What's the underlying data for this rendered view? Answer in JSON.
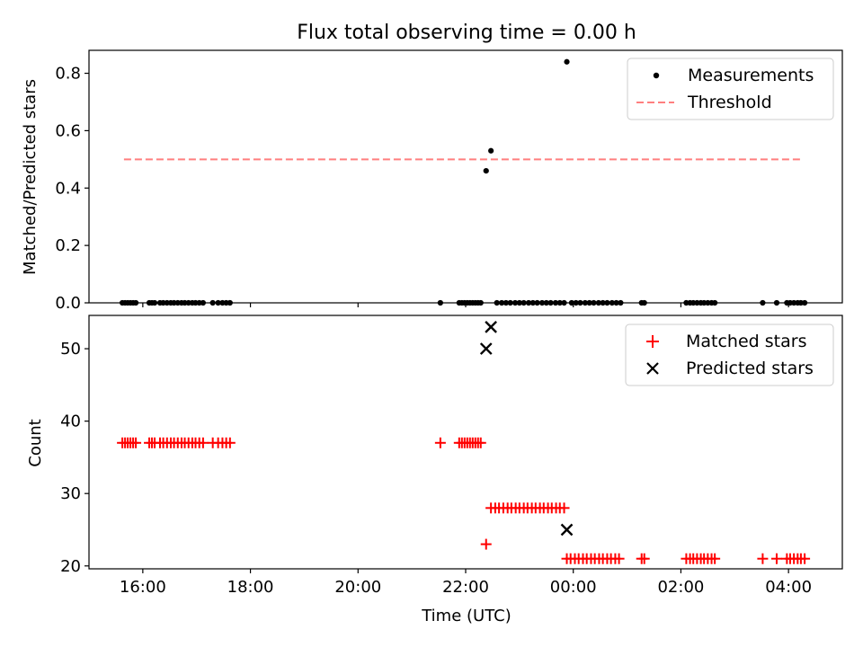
{
  "chart_data": [
    {
      "type": "scatter",
      "title": "Flux total observing time = 0.00 h",
      "ylabel": "Matched/Predicted stars",
      "xlabel": "",
      "xlim": [
        15.0,
        29.0
      ],
      "ylim": [
        0.0,
        0.88
      ],
      "xticks": [
        16,
        18,
        20,
        22,
        24,
        26,
        28
      ],
      "xticklabels": [
        "",
        "",
        "",
        "",
        "",
        "",
        ""
      ],
      "yticks": [
        0.0,
        0.2,
        0.4,
        0.6,
        0.8
      ],
      "yticklabels": [
        "0.0",
        "0.2",
        "0.4",
        "0.6",
        "0.8"
      ],
      "legend_position": "top-right",
      "series": [
        {
          "name": "Measurements",
          "marker": "dot",
          "color": "#000000",
          "points": [
            [
              15.62,
              0.0
            ],
            [
              15.67,
              0.0
            ],
            [
              15.72,
              0.0
            ],
            [
              15.77,
              0.0
            ],
            [
              15.82,
              0.0
            ],
            [
              15.87,
              0.0
            ],
            [
              16.12,
              0.0
            ],
            [
              16.17,
              0.0
            ],
            [
              16.22,
              0.0
            ],
            [
              16.32,
              0.0
            ],
            [
              16.38,
              0.0
            ],
            [
              16.45,
              0.0
            ],
            [
              16.52,
              0.0
            ],
            [
              16.58,
              0.0
            ],
            [
              16.65,
              0.0
            ],
            [
              16.72,
              0.0
            ],
            [
              16.78,
              0.0
            ],
            [
              16.85,
              0.0
            ],
            [
              16.92,
              0.0
            ],
            [
              16.98,
              0.0
            ],
            [
              17.05,
              0.0
            ],
            [
              17.12,
              0.0
            ],
            [
              17.3,
              0.0
            ],
            [
              17.4,
              0.0
            ],
            [
              17.48,
              0.0
            ],
            [
              17.55,
              0.0
            ],
            [
              17.62,
              0.0
            ],
            [
              21.53,
              0.0
            ],
            [
              21.88,
              0.0
            ],
            [
              21.93,
              0.0
            ],
            [
              21.98,
              0.0
            ],
            [
              22.03,
              0.0
            ],
            [
              22.08,
              0.0
            ],
            [
              22.13,
              0.0
            ],
            [
              22.18,
              0.0
            ],
            [
              22.23,
              0.0
            ],
            [
              22.28,
              0.0
            ],
            [
              22.38,
              0.46
            ],
            [
              22.47,
              0.53
            ],
            [
              22.58,
              0.0
            ],
            [
              22.67,
              0.0
            ],
            [
              22.75,
              0.0
            ],
            [
              22.83,
              0.0
            ],
            [
              22.92,
              0.0
            ],
            [
              23.0,
              0.0
            ],
            [
              23.08,
              0.0
            ],
            [
              23.17,
              0.0
            ],
            [
              23.25,
              0.0
            ],
            [
              23.33,
              0.0
            ],
            [
              23.42,
              0.0
            ],
            [
              23.5,
              0.0
            ],
            [
              23.58,
              0.0
            ],
            [
              23.67,
              0.0
            ],
            [
              23.75,
              0.0
            ],
            [
              23.83,
              0.0
            ],
            [
              23.88,
              0.84
            ],
            [
              23.97,
              0.0
            ],
            [
              24.05,
              0.0
            ],
            [
              24.13,
              0.0
            ],
            [
              24.22,
              0.0
            ],
            [
              24.3,
              0.0
            ],
            [
              24.38,
              0.0
            ],
            [
              24.47,
              0.0
            ],
            [
              24.55,
              0.0
            ],
            [
              24.63,
              0.0
            ],
            [
              24.72,
              0.0
            ],
            [
              24.8,
              0.0
            ],
            [
              24.88,
              0.0
            ],
            [
              25.27,
              0.0
            ],
            [
              25.32,
              0.0
            ],
            [
              26.1,
              0.0
            ],
            [
              26.17,
              0.0
            ],
            [
              26.23,
              0.0
            ],
            [
              26.3,
              0.0
            ],
            [
              26.37,
              0.0
            ],
            [
              26.43,
              0.0
            ],
            [
              26.5,
              0.0
            ],
            [
              26.57,
              0.0
            ],
            [
              26.63,
              0.0
            ],
            [
              27.52,
              0.0
            ],
            [
              27.78,
              0.0
            ],
            [
              27.97,
              0.0
            ],
            [
              28.03,
              0.0
            ],
            [
              28.1,
              0.0
            ],
            [
              28.17,
              0.0
            ],
            [
              28.23,
              0.0
            ],
            [
              28.3,
              0.0
            ]
          ]
        },
        {
          "name": "Threshold",
          "marker": "dashed-line",
          "color": "#ff7f7f",
          "points": [
            [
              15.65,
              0.5
            ],
            [
              28.27,
              0.5
            ]
          ]
        }
      ]
    },
    {
      "type": "scatter",
      "title": "",
      "ylabel": "Count",
      "xlabel": "Time (UTC)",
      "xlim": [
        15.0,
        29.0
      ],
      "ylim": [
        19.6,
        54.6
      ],
      "xticks": [
        16,
        18,
        20,
        22,
        24,
        26,
        28
      ],
      "xticklabels": [
        "16:00",
        "18:00",
        "20:00",
        "22:00",
        "00:00",
        "02:00",
        "04:00"
      ],
      "yticks": [
        20,
        30,
        40,
        50
      ],
      "yticklabels": [
        "20",
        "30",
        "40",
        "50"
      ],
      "legend_position": "top-right",
      "series": [
        {
          "name": "Matched stars",
          "marker": "plus",
          "color": "#ff0000",
          "points": [
            [
              15.62,
              37
            ],
            [
              15.67,
              37
            ],
            [
              15.72,
              37
            ],
            [
              15.77,
              37
            ],
            [
              15.82,
              37
            ],
            [
              15.87,
              37
            ],
            [
              16.12,
              37
            ],
            [
              16.17,
              37
            ],
            [
              16.22,
              37
            ],
            [
              16.32,
              37
            ],
            [
              16.38,
              37
            ],
            [
              16.45,
              37
            ],
            [
              16.52,
              37
            ],
            [
              16.58,
              37
            ],
            [
              16.65,
              37
            ],
            [
              16.72,
              37
            ],
            [
              16.78,
              37
            ],
            [
              16.85,
              37
            ],
            [
              16.92,
              37
            ],
            [
              16.98,
              37
            ],
            [
              17.05,
              37
            ],
            [
              17.12,
              37
            ],
            [
              17.3,
              37
            ],
            [
              17.4,
              37
            ],
            [
              17.48,
              37
            ],
            [
              17.55,
              37
            ],
            [
              17.62,
              37
            ],
            [
              21.53,
              37
            ],
            [
              21.88,
              37
            ],
            [
              21.93,
              37
            ],
            [
              21.98,
              37
            ],
            [
              22.03,
              37
            ],
            [
              22.08,
              37
            ],
            [
              22.13,
              37
            ],
            [
              22.18,
              37
            ],
            [
              22.23,
              37
            ],
            [
              22.28,
              37
            ],
            [
              22.38,
              23
            ],
            [
              22.47,
              28
            ],
            [
              22.55,
              28
            ],
            [
              22.62,
              28
            ],
            [
              22.7,
              28
            ],
            [
              22.78,
              28
            ],
            [
              22.85,
              28
            ],
            [
              22.93,
              28
            ],
            [
              23.0,
              28
            ],
            [
              23.08,
              28
            ],
            [
              23.15,
              28
            ],
            [
              23.23,
              28
            ],
            [
              23.3,
              28
            ],
            [
              23.38,
              28
            ],
            [
              23.45,
              28
            ],
            [
              23.53,
              28
            ],
            [
              23.6,
              28
            ],
            [
              23.68,
              28
            ],
            [
              23.75,
              28
            ],
            [
              23.83,
              28
            ],
            [
              23.88,
              21
            ],
            [
              23.95,
              21
            ],
            [
              24.03,
              21
            ],
            [
              24.1,
              21
            ],
            [
              24.18,
              21
            ],
            [
              24.25,
              21
            ],
            [
              24.33,
              21
            ],
            [
              24.4,
              21
            ],
            [
              24.48,
              21
            ],
            [
              24.55,
              21
            ],
            [
              24.63,
              21
            ],
            [
              24.7,
              21
            ],
            [
              24.78,
              21
            ],
            [
              24.85,
              21
            ],
            [
              25.27,
              21
            ],
            [
              25.32,
              21
            ],
            [
              26.1,
              21
            ],
            [
              26.17,
              21
            ],
            [
              26.23,
              21
            ],
            [
              26.3,
              21
            ],
            [
              26.37,
              21
            ],
            [
              26.43,
              21
            ],
            [
              26.5,
              21
            ],
            [
              26.57,
              21
            ],
            [
              26.63,
              21
            ],
            [
              27.52,
              21
            ],
            [
              27.78,
              21
            ],
            [
              27.97,
              21
            ],
            [
              28.03,
              21
            ],
            [
              28.1,
              21
            ],
            [
              28.17,
              21
            ],
            [
              28.23,
              21
            ],
            [
              28.3,
              21
            ]
          ]
        },
        {
          "name": "Predicted stars",
          "marker": "x",
          "color": "#000000",
          "points": [
            [
              22.38,
              50
            ],
            [
              22.47,
              53
            ],
            [
              23.88,
              25
            ]
          ]
        }
      ]
    }
  ]
}
